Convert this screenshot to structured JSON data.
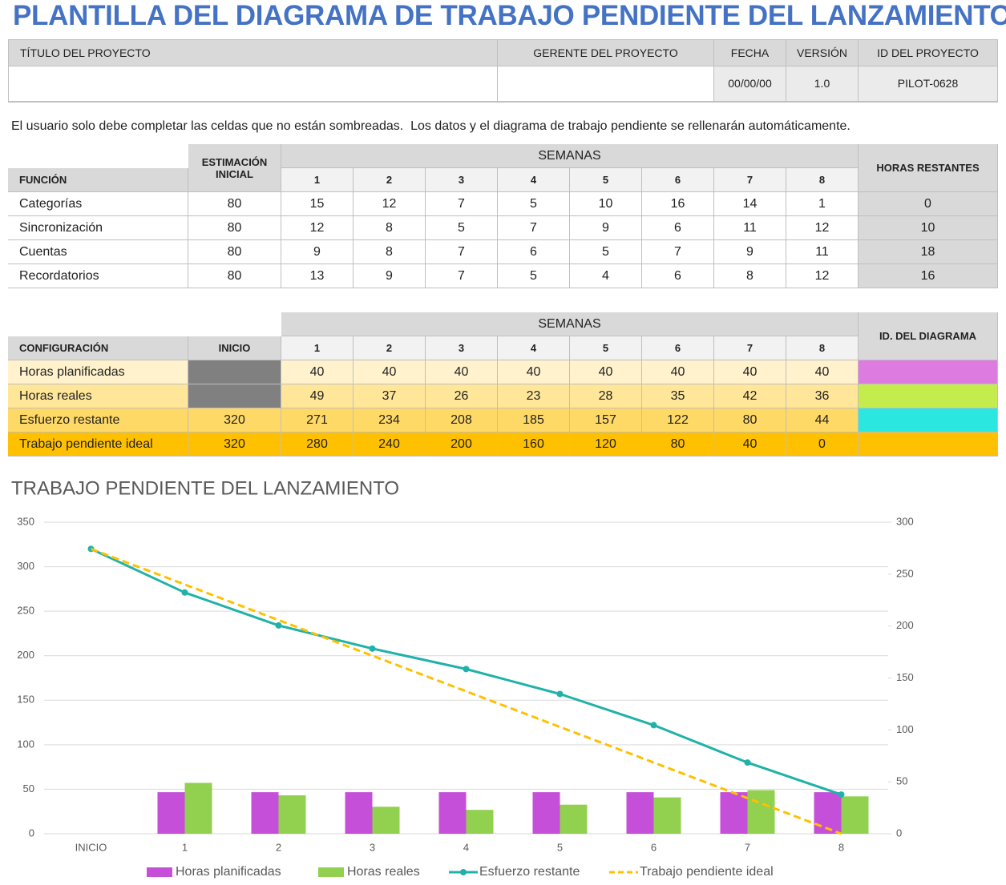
{
  "title": "PLANTILLA DEL DIAGRAMA DE TRABAJO PENDIENTE DEL LANZAMIENTO",
  "project": {
    "headers": [
      "TÍTULO DEL PROYECTO",
      "GERENTE DEL PROYECTO",
      "FECHA",
      "VERSIÓN",
      "ID DEL PROYECTO"
    ],
    "date": "00/00/00",
    "version": "1.0",
    "project_id": "PILOT-0628"
  },
  "instructions": "El usuario solo debe completar las celdas que no están sombreadas.  Los datos y el diagrama de trabajo pendiente se rellenarán automáticamente.",
  "tasks": {
    "group_header": "SEMANAS",
    "headers": [
      "FUNCIÓN",
      "ESTIMACIÓN INICIAL",
      "1",
      "2",
      "3",
      "4",
      "5",
      "6",
      "7",
      "8",
      "HORAS RESTANTES"
    ],
    "rows": [
      {
        "name": "Categorías",
        "values": [
          80,
          15,
          12,
          7,
          5,
          10,
          16,
          14,
          1,
          0
        ]
      },
      {
        "name": "Sincronización",
        "values": [
          80,
          12,
          8,
          5,
          7,
          9,
          6,
          11,
          12,
          10
        ]
      },
      {
        "name": "Cuentas",
        "values": [
          80,
          9,
          8,
          7,
          6,
          5,
          7,
          9,
          11,
          18
        ]
      },
      {
        "name": "Recordatorios",
        "values": [
          80,
          13,
          9,
          7,
          5,
          4,
          6,
          8,
          12,
          16
        ]
      }
    ]
  },
  "configuration": {
    "group_header": "SEMANAS",
    "headers": [
      "CONFIGURACIÓN",
      "INICIO",
      "1",
      "2",
      "3",
      "4",
      "5",
      "6",
      "7",
      "8",
      "ID. DEL DIAGRAMA"
    ],
    "rows": [
      {
        "name": "Horas planificadas",
        "fill": "#fff2cc",
        "swatch": "#dd7be0",
        "weeks": [
          40,
          40,
          40,
          40,
          40,
          40,
          40,
          40
        ]
      },
      {
        "name": "Horas reales",
        "fill": "#ffe699",
        "swatch": "#c5ec4d",
        "weeks": [
          49,
          37,
          26,
          23,
          28,
          35,
          42,
          36
        ]
      },
      {
        "name": "Esfuerzo restante",
        "fill": "#ffd966",
        "swatch": "#2ae8e0",
        "start": 320,
        "weeks": [
          271,
          234,
          208,
          185,
          157,
          122,
          80,
          44
        ]
      },
      {
        "name": "Trabajo pendiente ideal",
        "fill": "#ffc000",
        "swatch": "#ffc000",
        "start": 320,
        "weeks": [
          280,
          240,
          200,
          160,
          120,
          80,
          40,
          0
        ]
      }
    ]
  },
  "chart_data": {
    "type": "combo",
    "title": "TRABAJO PENDIENTE DEL LANZAMIENTO",
    "categories": [
      "INICIO",
      "1",
      "2",
      "3",
      "4",
      "5",
      "6",
      "7",
      "8"
    ],
    "series": [
      {
        "name": "Horas planificadas",
        "type": "bar",
        "axis": "y2",
        "color": "#c54fd9",
        "values": [
          null,
          40,
          40,
          40,
          40,
          40,
          40,
          40,
          40
        ]
      },
      {
        "name": "Horas reales",
        "type": "bar",
        "axis": "y2",
        "color": "#92d050",
        "values": [
          null,
          49,
          37,
          26,
          23,
          28,
          35,
          42,
          36
        ]
      },
      {
        "name": "Esfuerzo restante",
        "type": "line",
        "markers": true,
        "color": "#20b2a8",
        "values": [
          320,
          271,
          234,
          208,
          185,
          157,
          122,
          80,
          44
        ]
      },
      {
        "name": "Trabajo pendiente ideal",
        "type": "line",
        "dashed": true,
        "color": "#ffc000",
        "values": [
          320,
          280,
          240,
          200,
          160,
          120,
          80,
          40,
          0
        ]
      }
    ],
    "ylim": [
      0,
      350
    ],
    "yticks": [
      0,
      50,
      100,
      150,
      200,
      250,
      300,
      350
    ],
    "y2lim": [
      0,
      300
    ],
    "y2ticks": [
      0,
      50,
      100,
      150,
      200,
      250,
      300
    ],
    "grid": true,
    "legend": "bottom"
  }
}
